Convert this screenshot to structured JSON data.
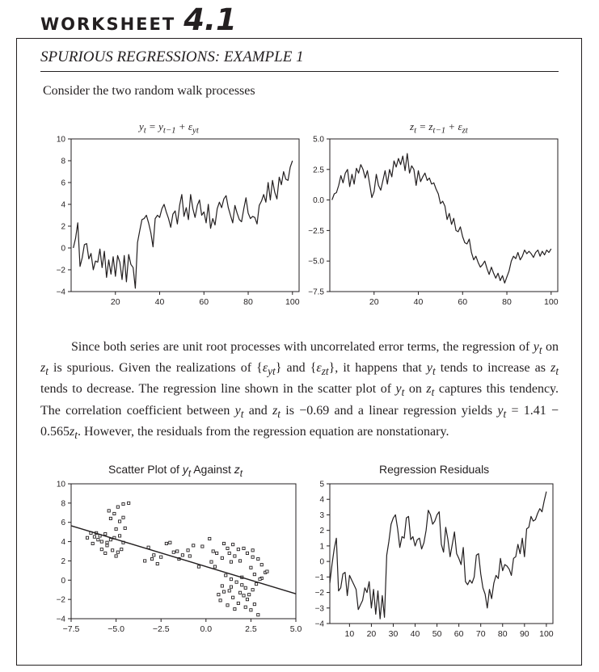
{
  "header": {
    "worksheet_word": "WORKSHEET",
    "worksheet_number": "4.1",
    "subtitle": "SPURIOUS REGRESSIONS: EXAMPLE 1"
  },
  "intro_text": "Consider the two random walk processes",
  "paragraph_html": "Since both series are unit root processes with uncorrelated error terms, the regression of <i>y</i><sub><i>t</i></sub> on <i>z</i><sub><i>t</i></sub> is spurious. Given the realizations of {<i>ε</i><sub><i>yt</i></sub>} and {<i>ε</i><sub><i>zt</i></sub>}, it happens that <i>y</i><sub><i>t</i></sub> tends to increase as <i>z</i><sub><i>t</i></sub> tends to decrease. The regression line shown in the scatter plot of <i>y</i><sub><i>t</i></sub> on <i>z</i><sub><i>t</i></sub> captures this tendency. The correlation coefficient between <i>y</i><sub><i>t</i></sub> and <i>z</i><sub><i>t</i></sub> is −0.69 and a linear regression yields <i>y</i><sub><i>t</i></sub> = 1.41 − 0.565<i>z</i><sub><i>t</i></sub>. However, the residuals from the regression equation are nonstationary.",
  "chart_data": [
    {
      "type": "line",
      "title_html": "<i>y</i><sub><i>t</i></sub> = <i>y</i><sub><i>t</i>−1</sub> + <i>ε</i><sub><i>yt</i></sub>",
      "xlim": [
        0,
        103
      ],
      "ylim": [
        -4,
        10
      ],
      "xticks": [
        20,
        40,
        60,
        80,
        100
      ],
      "yticks": [
        10,
        8,
        6,
        4,
        2,
        0,
        -2,
        -4
      ],
      "ytick_labels": [
        "10",
        "8",
        "6",
        "4",
        "2",
        "0",
        "−2",
        "−4"
      ],
      "grid": false,
      "x": [
        1,
        2,
        3,
        4,
        5,
        6,
        7,
        8,
        9,
        10,
        11,
        12,
        13,
        14,
        15,
        16,
        17,
        18,
        19,
        20,
        21,
        22,
        23,
        24,
        25,
        26,
        27,
        28,
        29,
        30,
        31,
        32,
        33,
        34,
        35,
        36,
        37,
        38,
        39,
        40,
        41,
        42,
        43,
        44,
        45,
        46,
        47,
        48,
        49,
        50,
        51,
        52,
        53,
        54,
        55,
        56,
        57,
        58,
        59,
        60,
        61,
        62,
        63,
        64,
        65,
        66,
        67,
        68,
        69,
        70,
        71,
        72,
        73,
        74,
        75,
        76,
        77,
        78,
        79,
        80,
        81,
        82,
        83,
        84,
        85,
        86,
        87,
        88,
        89,
        90,
        91,
        92,
        93,
        94,
        95,
        96,
        97,
        98,
        99,
        100
      ],
      "y": [
        0.0,
        0.9,
        2.3,
        -1.7,
        -0.9,
        0.3,
        0.4,
        -1.0,
        -0.5,
        -2.0,
        -1.2,
        -1.3,
        -0.1,
        -1.8,
        -0.3,
        -2.7,
        -1.1,
        -2.4,
        -0.8,
        -2.6,
        -0.7,
        -1.3,
        -2.9,
        -0.7,
        -3.1,
        -0.6,
        -1.5,
        -1.8,
        -3.7,
        0.5,
        1.6,
        2.6,
        2.7,
        3.0,
        2.3,
        1.4,
        0.1,
        2.7,
        3.0,
        2.8,
        3.6,
        4.0,
        3.3,
        2.7,
        1.9,
        3.1,
        3.4,
        2.2,
        3.9,
        4.9,
        2.9,
        3.7,
        2.6,
        4.9,
        3.6,
        2.8,
        3.9,
        4.4,
        3.0,
        3.3,
        2.3,
        4.0,
        1.8,
        2.7,
        2.1,
        3.6,
        4.2,
        3.7,
        4.5,
        4.8,
        3.7,
        3.0,
        2.3,
        3.9,
        3.2,
        2.6,
        2.4,
        3.6,
        4.6,
        3.2,
        2.7,
        2.9,
        2.8,
        2.2,
        3.9,
        4.3,
        4.9,
        4.2,
        6.0,
        4.4,
        6.2,
        5.1,
        4.5,
        6.5,
        5.8,
        7.0,
        6.3,
        6.2,
        7.4,
        8.0
      ]
    },
    {
      "type": "line",
      "title_html": "<i>z</i><sub><i>t</i></sub> = <i>z</i><sub><i>t</i>−1</sub> + <i>ε</i><sub><i>zt</i></sub>",
      "xlim": [
        0,
        103
      ],
      "ylim": [
        -7.5,
        5.0
      ],
      "xticks": [
        20,
        40,
        60,
        80,
        100
      ],
      "yticks": [
        5.0,
        2.5,
        0.0,
        -2.5,
        -5.0,
        -7.5
      ],
      "ytick_labels": [
        "5.0",
        "2.5",
        "0.0",
        "−2.5",
        "−5.0",
        "−7.5"
      ],
      "grid": false,
      "x": [
        1,
        2,
        3,
        4,
        5,
        6,
        7,
        8,
        9,
        10,
        11,
        12,
        13,
        14,
        15,
        16,
        17,
        18,
        19,
        20,
        21,
        22,
        23,
        24,
        25,
        26,
        27,
        28,
        29,
        30,
        31,
        32,
        33,
        34,
        35,
        36,
        37,
        38,
        39,
        40,
        41,
        42,
        43,
        44,
        45,
        46,
        47,
        48,
        49,
        50,
        51,
        52,
        53,
        54,
        55,
        56,
        57,
        58,
        59,
        60,
        61,
        62,
        63,
        64,
        65,
        66,
        67,
        68,
        69,
        70,
        71,
        72,
        73,
        74,
        75,
        76,
        77,
        78,
        79,
        80,
        81,
        82,
        83,
        84,
        85,
        86,
        87,
        88,
        89,
        90,
        91,
        92,
        93,
        94,
        95,
        96,
        97,
        98,
        99,
        100
      ],
      "y": [
        0.0,
        0.5,
        0.6,
        1.2,
        2.0,
        1.4,
        2.2,
        2.5,
        1.1,
        2.1,
        1.3,
        2.6,
        2.2,
        2.9,
        2.5,
        1.8,
        2.4,
        1.3,
        0.2,
        0.7,
        2.1,
        1.2,
        0.8,
        1.6,
        2.4,
        1.3,
        2.5,
        1.9,
        3.2,
        2.7,
        3.4,
        2.9,
        3.6,
        2.4,
        3.8,
        2.2,
        2.8,
        2.5,
        1.2,
        2.4,
        1.5,
        1.9,
        2.2,
        1.6,
        1.8,
        1.3,
        1.4,
        0.9,
        0.5,
        -0.3,
        -0.1,
        -0.5,
        -1.6,
        -1.1,
        -2.0,
        -1.5,
        -2.5,
        -2.6,
        -2.2,
        -3.0,
        -3.5,
        -3.6,
        -3.2,
        -4.3,
        -4.9,
        -4.6,
        -5.1,
        -5.5,
        -5.3,
        -5.0,
        -5.6,
        -6.1,
        -5.5,
        -6.0,
        -6.4,
        -6.0,
        -6.6,
        -6.2,
        -6.8,
        -6.3,
        -5.8,
        -5.0,
        -4.6,
        -4.8,
        -4.3,
        -4.9,
        -4.6,
        -4.1,
        -4.4,
        -4.2,
        -4.4,
        -4.7,
        -4.3,
        -4.1,
        -4.6,
        -4.2,
        -4.5,
        -4.1,
        -4.3,
        -4.0
      ]
    },
    {
      "type": "scatter",
      "title_html": "Scatter Plot of <i>y</i><sub><i>t</i></sub> Against <i>z</i><sub><i>t</i></sub>",
      "xlim": [
        -7.5,
        5.0
      ],
      "ylim": [
        -4,
        10
      ],
      "xticks": [
        -7.5,
        -5.0,
        -2.5,
        0.0,
        2.5,
        5.0
      ],
      "xtick_labels": [
        "−7.5",
        "−5.0",
        "−2.5",
        "0.0",
        "2.5",
        "5.0"
      ],
      "yticks": [
        10,
        8,
        6,
        4,
        2,
        0,
        -2,
        -4
      ],
      "ytick_labels": [
        "10",
        "8",
        "6",
        "4",
        "2",
        "0",
        "−2",
        "−4"
      ],
      "grid": false,
      "regression_line": {
        "intercept": 1.41,
        "slope": -0.565
      },
      "points": [
        [
          -6.6,
          4.4
        ],
        [
          -6.4,
          4.9
        ],
        [
          -6.3,
          3.8
        ],
        [
          -6.1,
          4.9
        ],
        [
          -6.0,
          4.2
        ],
        [
          -6.2,
          4.5
        ],
        [
          -5.9,
          4.6
        ],
        [
          -5.8,
          4.0
        ],
        [
          -5.6,
          4.8
        ],
        [
          -5.5,
          3.9
        ],
        [
          -5.3,
          4.2
        ],
        [
          -5.1,
          4.4
        ],
        [
          -5.8,
          3.2
        ],
        [
          -5.5,
          3.6
        ],
        [
          -5.2,
          3.1
        ],
        [
          -5.6,
          2.8
        ],
        [
          -4.8,
          4.6
        ],
        [
          -4.6,
          3.9
        ],
        [
          -4.9,
          2.9
        ],
        [
          -5.0,
          2.5
        ],
        [
          -4.7,
          3.2
        ],
        [
          -5.4,
          7.2
        ],
        [
          -5.1,
          6.9
        ],
        [
          -4.9,
          7.6
        ],
        [
          -4.6,
          7.9
        ],
        [
          -5.3,
          6.4
        ],
        [
          -4.8,
          6.1
        ],
        [
          -4.5,
          5.4
        ],
        [
          -5.0,
          5.3
        ],
        [
          -4.3,
          8.0
        ],
        [
          -4.6,
          6.5
        ],
        [
          -3.2,
          3.4
        ],
        [
          -3.0,
          2.2
        ],
        [
          -2.9,
          2.6
        ],
        [
          -2.5,
          2.4
        ],
        [
          -2.7,
          1.7
        ],
        [
          -2.2,
          3.8
        ],
        [
          -2.0,
          3.9
        ],
        [
          -1.6,
          3.0
        ],
        [
          -1.3,
          2.6
        ],
        [
          -1.0,
          3.1
        ],
        [
          -0.9,
          2.5
        ],
        [
          -0.7,
          3.6
        ],
        [
          -1.5,
          2.2
        ],
        [
          -0.2,
          3.5
        ],
        [
          0.2,
          4.3
        ],
        [
          0.4,
          3.0
        ],
        [
          0.5,
          1.4
        ],
        [
          0.9,
          2.3
        ],
        [
          1.2,
          3.3
        ],
        [
          1.3,
          2.8
        ],
        [
          1.4,
          1.9
        ],
        [
          1.6,
          2.5
        ],
        [
          1.5,
          3.7
        ],
        [
          1.0,
          3.8
        ],
        [
          1.8,
          3.2
        ],
        [
          1.9,
          2.0
        ],
        [
          2.1,
          3.3
        ],
        [
          2.3,
          2.8
        ],
        [
          2.6,
          2.4
        ],
        [
          2.9,
          2.2
        ],
        [
          3.1,
          1.6
        ],
        [
          3.3,
          0.8
        ],
        [
          2.5,
          1.3
        ],
        [
          2.7,
          0.6
        ],
        [
          3.1,
          0.2
        ],
        [
          3.4,
          0.9
        ],
        [
          2.6,
          3.1
        ],
        [
          1.1,
          0.5
        ],
        [
          1.4,
          -0.7
        ],
        [
          1.7,
          -0.2
        ],
        [
          2.0,
          0.3
        ],
        [
          2.2,
          -0.8
        ],
        [
          2.4,
          -1.5
        ],
        [
          2.6,
          -1.0
        ],
        [
          2.8,
          -0.4
        ],
        [
          3.0,
          0.1
        ],
        [
          1.5,
          -1.8
        ],
        [
          1.8,
          -2.4
        ],
        [
          2.1,
          -1.6
        ],
        [
          2.3,
          -2.0
        ],
        [
          2.5,
          -3.1
        ],
        [
          1.2,
          -2.6
        ],
        [
          1.0,
          -1.2
        ],
        [
          0.8,
          -2.1
        ],
        [
          0.9,
          -0.6
        ],
        [
          1.3,
          -1.1
        ],
        [
          1.9,
          -1.3
        ],
        [
          2.7,
          -2.5
        ],
        [
          1.6,
          -3.0
        ],
        [
          2.2,
          -2.8
        ],
        [
          2.9,
          -3.6
        ],
        [
          0.7,
          -1.5
        ],
        [
          1.4,
          0.1
        ],
        [
          2.0,
          -0.5
        ],
        [
          0.6,
          2.8
        ],
        [
          0.3,
          1.9
        ],
        [
          -0.4,
          1.4
        ],
        [
          -1.8,
          2.9
        ],
        [
          -3.4,
          2.0
        ]
      ]
    },
    {
      "type": "line",
      "title": "Regression Residuals",
      "xlim": [
        1,
        103
      ],
      "ylim": [
        -4,
        5
      ],
      "xticks": [
        10,
        20,
        30,
        40,
        50,
        60,
        70,
        80,
        90,
        100
      ],
      "yticks": [
        5,
        4,
        3,
        2,
        1,
        0,
        -1,
        -2,
        -3,
        -4
      ],
      "ytick_labels": [
        "5",
        "4",
        "3",
        "2",
        "1",
        "0",
        "−1",
        "−2",
        "−3",
        "−4"
      ],
      "grid": false,
      "x": [
        1,
        2,
        3,
        4,
        5,
        6,
        7,
        8,
        9,
        10,
        11,
        12,
        13,
        14,
        15,
        16,
        17,
        18,
        19,
        20,
        21,
        22,
        23,
        24,
        25,
        26,
        27,
        28,
        29,
        30,
        31,
        32,
        33,
        34,
        35,
        36,
        37,
        38,
        39,
        40,
        41,
        42,
        43,
        44,
        45,
        46,
        47,
        48,
        49,
        50,
        51,
        52,
        53,
        54,
        55,
        56,
        57,
        58,
        59,
        60,
        61,
        62,
        63,
        64,
        65,
        66,
        67,
        68,
        69,
        70,
        71,
        72,
        73,
        74,
        75,
        76,
        77,
        78,
        79,
        80,
        81,
        82,
        83,
        84,
        85,
        86,
        87,
        88,
        89,
        90,
        91,
        92,
        93,
        94,
        95,
        96,
        97,
        98,
        99,
        100
      ],
      "y": [
        -1.4,
        -0.2,
        0.8,
        1.5,
        -1.9,
        -1.7,
        -0.8,
        -0.7,
        -2.2,
        -0.9,
        -1.2,
        -1.5,
        -1.8,
        -3.1,
        -2.8,
        -2.5,
        -1.7,
        -2.0,
        -1.3,
        -3.0,
        -1.8,
        -3.4,
        -1.9,
        -3.7,
        -2.2,
        -3.6,
        0.4,
        1.3,
        2.4,
        2.8,
        3.0,
        2.1,
        0.9,
        1.6,
        1.5,
        2.8,
        2.9,
        1.4,
        1.6,
        1.0,
        1.4,
        1.5,
        0.8,
        1.2,
        2.0,
        3.3,
        3.0,
        2.4,
        2.6,
        3.0,
        3.2,
        1.1,
        0.6,
        2.2,
        1.4,
        0.3,
        1.1,
        1.9,
        0.5,
        0.2,
        -0.2,
        0.9,
        -1.3,
        -1.5,
        -1.2,
        -1.4,
        -1.0,
        0.4,
        0.5,
        -0.8,
        -1.7,
        -2.1,
        -3.0,
        -1.8,
        -2.4,
        -1.4,
        -0.9,
        -1.1,
        0.2,
        -0.6,
        -0.2,
        -0.3,
        -0.5,
        -0.9,
        0.2,
        0.3,
        1.1,
        0.5,
        1.5,
        0.3,
        2.1,
        2.2,
        2.9,
        2.6,
        2.7,
        3.1,
        3.4,
        3.2,
        3.9,
        4.5
      ]
    }
  ]
}
